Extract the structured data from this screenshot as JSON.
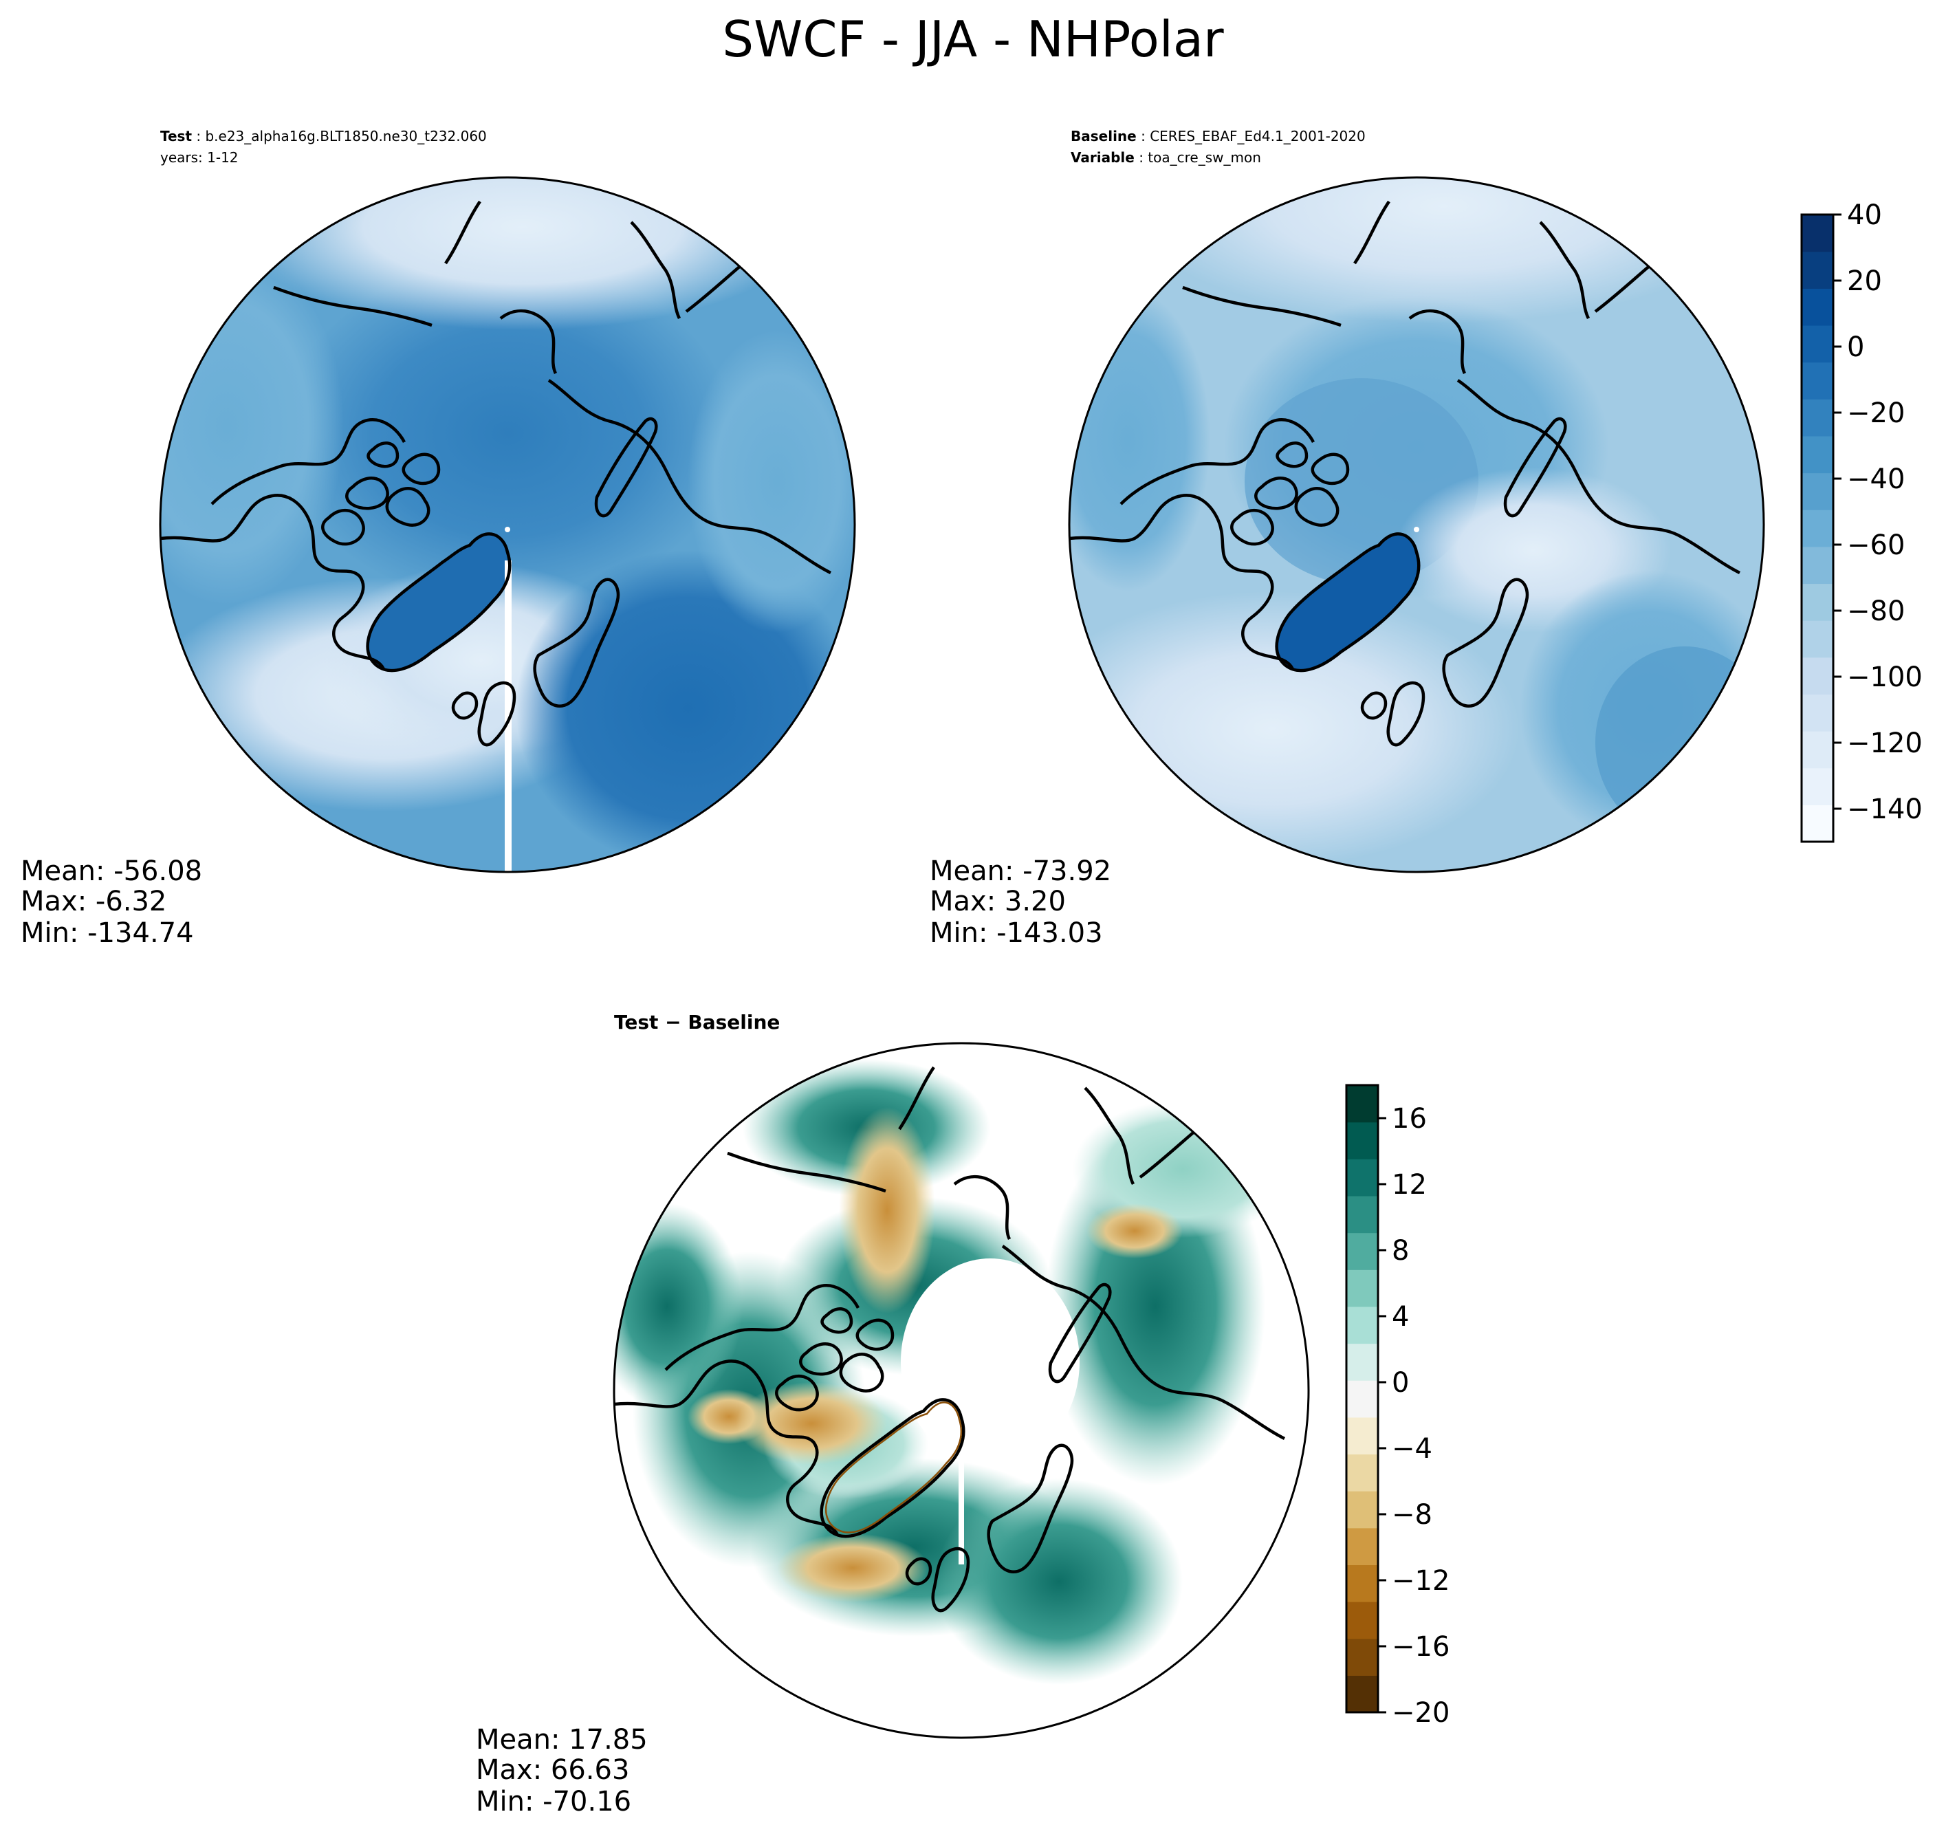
{
  "figure_title": "SWCF - JJA - NHPolar",
  "panels": {
    "test": {
      "header_label": "Test",
      "header_value": "b.e23_alpha16g.BLT1850.ne30_t232.060",
      "header_line2": "years: 1-12",
      "stats": {
        "mean": "Mean: -56.08",
        "max": "Max: -6.32",
        "min": "Min: -134.74"
      }
    },
    "baseline": {
      "header_label": "Baseline",
      "header_value": "CERES_EBAF_Ed4.1_2001-2020",
      "header_label2": "Variable",
      "header_value2": "toa_cre_sw_mon",
      "stats": {
        "mean": "Mean: -73.92",
        "max": "Max:  3.20",
        "min": "Min: -143.03"
      }
    },
    "diff": {
      "header_label": "Test − Baseline",
      "stats": {
        "mean": "Mean: 17.85",
        "max": "Max: 66.63",
        "min": "Min: -70.16"
      }
    }
  },
  "colorbars": {
    "main": {
      "ticks": [
        "40",
        "20",
        "0",
        "−20",
        "−40",
        "−60",
        "−80",
        "−100",
        "−120",
        "−140"
      ],
      "tick_values": [
        40,
        20,
        0,
        -20,
        -40,
        -60,
        -80,
        -100,
        -120,
        -140
      ],
      "range": [
        -150,
        40
      ],
      "colors": [
        "#f7fbff",
        "#e9f2fb",
        "#deebf7",
        "#d2e3f3",
        "#c6dbef",
        "#b0d2e8",
        "#9ecae1",
        "#82badb",
        "#6baed6",
        "#57a0ce",
        "#4292c6",
        "#3282be",
        "#2171b5",
        "#1361a9",
        "#08519c",
        "#083f80",
        "#08306b"
      ]
    },
    "diff": {
      "ticks": [
        "16",
        "12",
        "8",
        "4",
        "0",
        "−4",
        "−8",
        "−12",
        "−16",
        "−20"
      ],
      "tick_values": [
        16,
        12,
        8,
        4,
        0,
        -4,
        -8,
        -12,
        -16,
        -20
      ],
      "range": [
        -20,
        18
      ],
      "colors": [
        "#543005",
        "#7f4a08",
        "#9c5b0b",
        "#b8791e",
        "#cf9a42",
        "#dfbf77",
        "#ebd8a4",
        "#f5ecd0",
        "#f5f5f5",
        "#d6eeea",
        "#a9dfd6",
        "#7fc9bc",
        "#50ac9f",
        "#2b8f84",
        "#0f736b",
        "#015b51",
        "#003c30"
      ]
    }
  },
  "chart_data": [
    {
      "type": "heatmap",
      "title": "Test",
      "projection": "north-polar-stereographic",
      "colormap": "Blues_r",
      "value_range": [
        -150,
        40
      ],
      "stats": {
        "mean": -56.08,
        "max": -6.32,
        "min": -134.74
      }
    },
    {
      "type": "heatmap",
      "title": "Baseline",
      "projection": "north-polar-stereographic",
      "colormap": "Blues_r",
      "value_range": [
        -150,
        40
      ],
      "stats": {
        "mean": -73.92,
        "max": 3.2,
        "min": -143.03
      }
    },
    {
      "type": "heatmap",
      "title": "Test − Baseline",
      "projection": "north-polar-stereographic",
      "colormap": "BrBG",
      "value_range": [
        -20,
        18
      ],
      "stats": {
        "mean": 17.85,
        "max": 66.63,
        "min": -70.16
      }
    }
  ]
}
